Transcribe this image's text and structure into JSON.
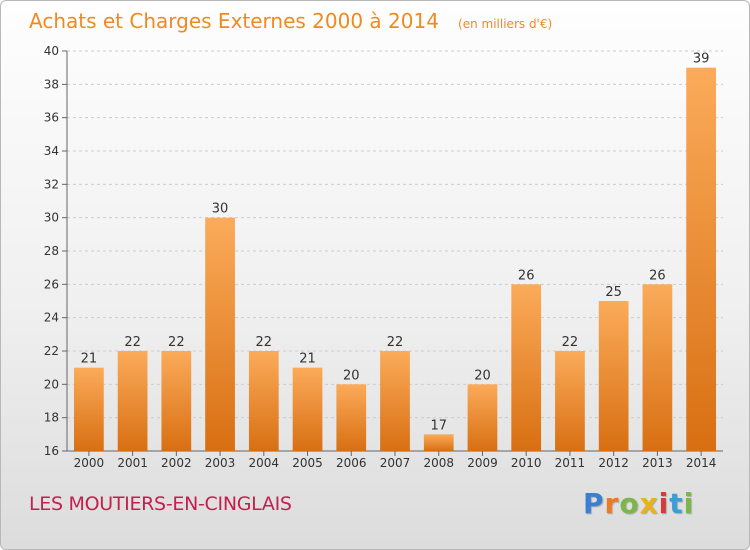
{
  "chart_data": {
    "type": "bar",
    "title": "Achats et Charges Externes 2000 à 2014",
    "subtitle": "(en milliers d'€)",
    "categories": [
      "2000",
      "2001",
      "2002",
      "2003",
      "2004",
      "2005",
      "2006",
      "2007",
      "2008",
      "2009",
      "2010",
      "2011",
      "2012",
      "2013",
      "2014"
    ],
    "values": [
      21,
      22,
      22,
      30,
      22,
      21,
      20,
      22,
      17,
      20,
      26,
      22,
      25,
      26,
      39
    ],
    "ylim": [
      16,
      40
    ],
    "yticks": [
      16,
      18,
      20,
      22,
      24,
      26,
      28,
      30,
      32,
      34,
      36,
      38,
      40
    ],
    "grid": true,
    "legend": "none",
    "colors": {
      "bar_light": "#fbab5a",
      "bar_dark": "#d86f12",
      "grid": "#cccccc",
      "title": "#f08a1e"
    }
  },
  "location": "LES MOUTIERS-EN-CINGLAIS",
  "logo": {
    "text": "Proxiti",
    "letters": [
      {
        "ch": "P",
        "color": "#3a7fd0"
      },
      {
        "ch": "r",
        "color": "#ee7a22"
      },
      {
        "ch": "o",
        "color": "#7ab648"
      },
      {
        "ch": "x",
        "color": "#e8b21a"
      },
      {
        "ch": "i",
        "color": "#d63b3b"
      },
      {
        "ch": "t",
        "color": "#3a9fd8"
      },
      {
        "ch": "i",
        "color": "#7ab648"
      }
    ]
  }
}
